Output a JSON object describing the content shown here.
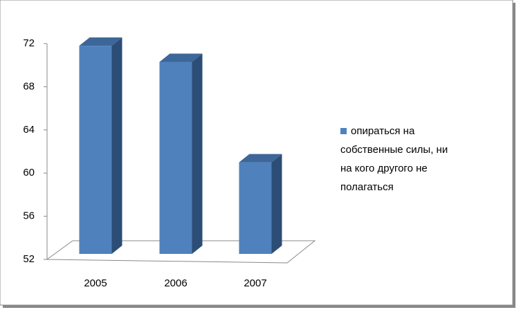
{
  "chart_data": {
    "type": "bar3d",
    "categories": [
      "2005",
      "2006",
      "2007"
    ],
    "series": [
      {
        "name": "опираться на собственные силы, ни на кого другого не полагаться",
        "color": "#4f81bd",
        "values": [
          71.8,
          70.3,
          61
        ]
      }
    ],
    "ylim": [
      52,
      72
    ],
    "yticks": [
      52,
      56,
      60,
      64,
      68,
      72
    ],
    "legend": "right"
  }
}
